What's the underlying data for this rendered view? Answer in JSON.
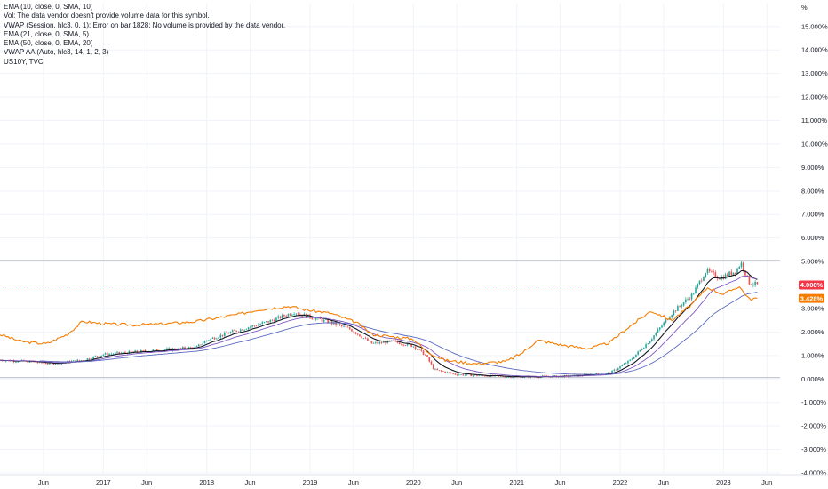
{
  "legend": [
    "EMA (10, close, 0, SMA, 10)",
    "Vol: The data vendor doesn't provide volume data for this symbol.",
    "VWAP (Session, hlc3, 0, 1): Error on bar 1828: No volume is provided by the data vendor.",
    "EMA (21, close, 0, SMA, 5)",
    "EMA (50, close, 0, EMA, 20)",
    "VWAP AA (Auto, hlc3, 14, 1, 2, 3)",
    "US10Y, TVC"
  ],
  "colors": {
    "up": "#26a69a",
    "down": "#ef5350",
    "ema10": "#131722",
    "ema21": "#7e57c2",
    "ema50": "#5c6bc0",
    "vwap": "#f57c00",
    "price_line": "#f23645"
  },
  "chart_data": {
    "type": "candlestick-line",
    "y_unit": "%",
    "ylim": [
      -4.0,
      15.0
    ],
    "y_ticks": [
      "15.000%",
      "14.000%",
      "13.000%",
      "12.000%",
      "11.000%",
      "10.000%",
      "9.000%",
      "8.000%",
      "7.000%",
      "6.000%",
      "5.000%",
      "4.000%",
      "3.000%",
      "2.000%",
      "1.000%",
      "0.000%",
      "-1.000%",
      "-2.000%",
      "-3.000%",
      "-4.000%"
    ],
    "y_tick_values": [
      15,
      14,
      13,
      12,
      11,
      10,
      9,
      8,
      7,
      6,
      5,
      4,
      3,
      2,
      1,
      0,
      -1,
      -2,
      -3,
      -4
    ],
    "x_range": [
      "2016-04",
      "2023-07"
    ],
    "x_ticks": [
      {
        "label": "Jun",
        "t": 2016.42
      },
      {
        "label": "2017",
        "t": 2017.0
      },
      {
        "label": "Jun",
        "t": 2017.42
      },
      {
        "label": "2018",
        "t": 2018.0
      },
      {
        "label": "Jun",
        "t": 2018.42
      },
      {
        "label": "2019",
        "t": 2019.0
      },
      {
        "label": "Jun",
        "t": 2019.42
      },
      {
        "label": "2020",
        "t": 2020.0
      },
      {
        "label": "Jun",
        "t": 2020.42
      },
      {
        "label": "2021",
        "t": 2021.0
      },
      {
        "label": "Jun",
        "t": 2021.42
      },
      {
        "label": "2022",
        "t": 2022.0
      },
      {
        "label": "Jun",
        "t": 2022.42
      },
      {
        "label": "2023",
        "t": 2023.0
      },
      {
        "label": "Jun",
        "t": 2023.42
      }
    ],
    "price_anchors": [
      [
        2016.0,
        0.8
      ],
      [
        2016.25,
        0.75
      ],
      [
        2016.5,
        0.65
      ],
      [
        2016.8,
        0.8
      ],
      [
        2017.0,
        1.05
      ],
      [
        2017.3,
        1.15
      ],
      [
        2017.6,
        1.25
      ],
      [
        2017.9,
        1.35
      ],
      [
        2018.0,
        1.65
      ],
      [
        2018.2,
        1.95
      ],
      [
        2018.4,
        2.2
      ],
      [
        2018.6,
        2.45
      ],
      [
        2018.85,
        2.85
      ],
      [
        2018.95,
        2.7
      ],
      [
        2019.2,
        2.4
      ],
      [
        2019.4,
        2.1
      ],
      [
        2019.6,
        1.5
      ],
      [
        2019.8,
        1.6
      ],
      [
        2020.0,
        1.4
      ],
      [
        2020.12,
        1.0
      ],
      [
        2020.2,
        0.4
      ],
      [
        2020.4,
        0.2
      ],
      [
        2020.6,
        0.15
      ],
      [
        2020.9,
        0.1
      ],
      [
        2021.2,
        0.1
      ],
      [
        2021.5,
        0.12
      ],
      [
        2021.9,
        0.25
      ],
      [
        2022.1,
        0.8
      ],
      [
        2022.3,
        1.7
      ],
      [
        2022.5,
        2.8
      ],
      [
        2022.7,
        3.6
      ],
      [
        2022.83,
        4.6
      ],
      [
        2022.97,
        4.3
      ],
      [
        2023.12,
        4.6
      ],
      [
        2023.17,
        4.95
      ],
      [
        2023.25,
        4.1
      ],
      [
        2023.33,
        4.0
      ]
    ],
    "vwap_anchors": [
      [
        2016.0,
        1.9
      ],
      [
        2016.2,
        1.6
      ],
      [
        2016.45,
        1.5
      ],
      [
        2016.65,
        1.9
      ],
      [
        2016.8,
        2.45
      ],
      [
        2017.0,
        2.35
      ],
      [
        2017.3,
        2.3
      ],
      [
        2017.6,
        2.35
      ],
      [
        2017.9,
        2.45
      ],
      [
        2018.1,
        2.6
      ],
      [
        2018.3,
        2.75
      ],
      [
        2018.5,
        2.95
      ],
      [
        2018.8,
        3.1
      ],
      [
        2018.95,
        2.95
      ],
      [
        2019.2,
        2.8
      ],
      [
        2019.45,
        2.4
      ],
      [
        2019.6,
        1.9
      ],
      [
        2019.8,
        1.8
      ],
      [
        2020.0,
        1.7
      ],
      [
        2020.12,
        1.2
      ],
      [
        2020.3,
        0.8
      ],
      [
        2020.6,
        0.65
      ],
      [
        2020.9,
        0.75
      ],
      [
        2021.05,
        1.1
      ],
      [
        2021.2,
        1.65
      ],
      [
        2021.5,
        1.4
      ],
      [
        2021.7,
        1.3
      ],
      [
        2021.9,
        1.55
      ],
      [
        2022.05,
        2.1
      ],
      [
        2022.3,
        2.9
      ],
      [
        2022.5,
        2.5
      ],
      [
        2022.7,
        3.2
      ],
      [
        2022.85,
        3.9
      ],
      [
        2023.0,
        3.6
      ],
      [
        2023.15,
        3.95
      ],
      [
        2023.25,
        3.4
      ],
      [
        2023.33,
        3.43
      ]
    ],
    "last_price": {
      "value": 4.0,
      "label": "4.008%"
    },
    "last_vwap": {
      "value": 3.43,
      "label": "3.428%"
    },
    "horizontal_levels": [
      5.05,
      0.06
    ]
  }
}
